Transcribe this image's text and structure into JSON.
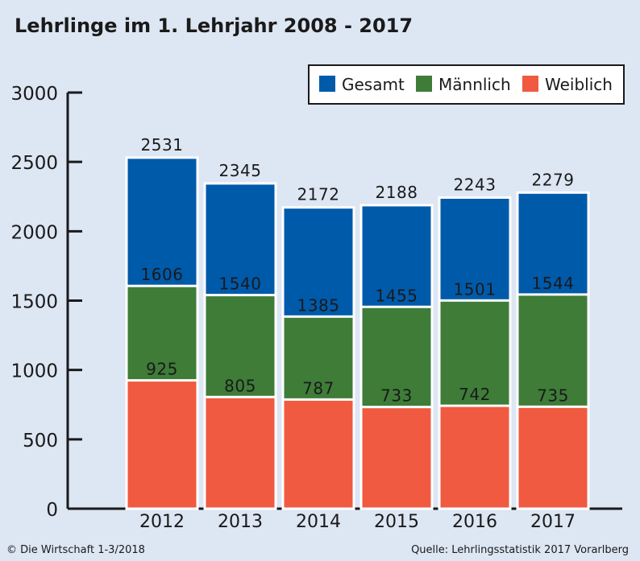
{
  "title": "Lehrlinge im 1. Lehrjahr 2008 - 2017",
  "footer": {
    "copyright": "© Die Wirtschaft 1-3/2018",
    "source": "Quelle: Lehrlingsstatistik 2017 Vorarlberg"
  },
  "chart_data": {
    "type": "bar",
    "stacking": "overlay",
    "categories": [
      "2012",
      "2013",
      "2014",
      "2015",
      "2016",
      "2017"
    ],
    "series": [
      {
        "name": "Gesamt",
        "color": "#005aaa",
        "values": [
          2531,
          2345,
          2172,
          2188,
          2243,
          2279
        ]
      },
      {
        "name": "Männlich",
        "color": "#3e7c38",
        "values": [
          1606,
          1540,
          1385,
          1455,
          1501,
          1544
        ]
      },
      {
        "name": "Weiblich",
        "color": "#f05a40",
        "values": [
          925,
          805,
          787,
          733,
          742,
          735
        ]
      }
    ],
    "ylim": [
      0,
      3000
    ],
    "yticks": [
      0,
      500,
      1000,
      1500,
      2000,
      2500,
      3000
    ],
    "legend_position": "top-right",
    "grid": false
  }
}
